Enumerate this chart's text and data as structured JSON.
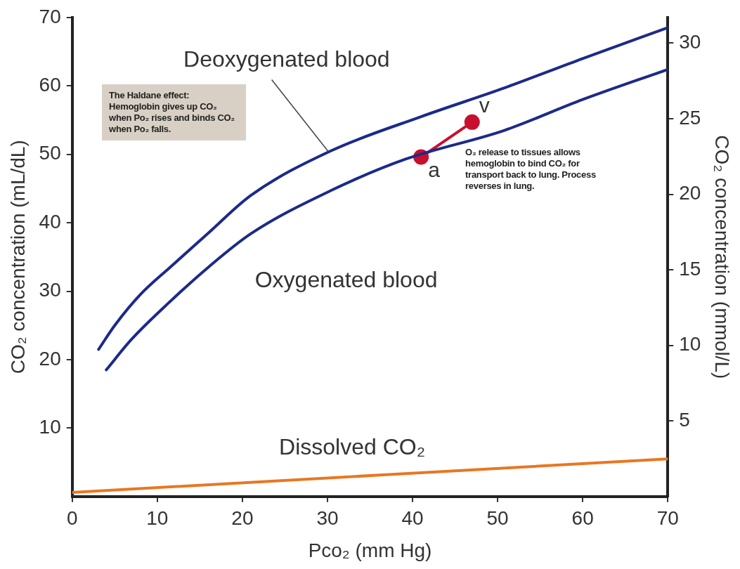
{
  "chart_data": {
    "type": "line",
    "xlabel": "Pco₂ (mm Hg)",
    "ylabel": "CO₂ concentration (mL/dL)",
    "y2label": "CO₂ concentration (mmol/L)",
    "xlim": [
      0,
      70
    ],
    "xticks": [
      0,
      10,
      20,
      30,
      40,
      50,
      60,
      70
    ],
    "ylim": [
      0,
      70
    ],
    "yticks": [
      10,
      20,
      30,
      40,
      50,
      60,
      70
    ],
    "y2lim": [
      0,
      31.7
    ],
    "y2ticks": [
      5,
      10,
      15,
      20,
      25,
      30
    ],
    "grid": false,
    "legend": false,
    "marker": "none",
    "line_style": "solid",
    "series": [
      {
        "name": "Deoxygenated blood",
        "color": "#1c2a8a",
        "x": [
          3.1,
          5,
          8,
          11.6,
          16,
          21,
          30.4,
          41,
          50.8,
          60,
          70
        ],
        "values": [
          21.5,
          25,
          29.5,
          33.6,
          38.5,
          44,
          50.5,
          55.5,
          59.7,
          64,
          68.5
        ]
      },
      {
        "name": "Oxygenated blood",
        "color": "#1c2a8a",
        "x": [
          4,
          7,
          11.6,
          16,
          21,
          30.4,
          39.2,
          50.8,
          60,
          70
        ],
        "values": [
          18.5,
          23,
          28.6,
          33.5,
          38.4,
          44.7,
          49.3,
          53.5,
          58,
          62.4
        ]
      },
      {
        "name": "Dissolved CO₂",
        "color": "#e87722",
        "x": [
          0,
          70
        ],
        "values": [
          0.6,
          5.5
        ]
      },
      {
        "color": "#c8102e",
        "marker": "circle",
        "x": [
          41,
          47
        ],
        "values": [
          49.6,
          54.7
        ],
        "value_labels": [
          "a",
          "v"
        ]
      }
    ],
    "annotations": [
      "The Haldane effect: Hemoglobin gives up CO₂ when Po₂ rises and binds CO₂ when Po₂ falls.",
      "O₂ release to tissues allows hemoglobin to bind CO₂ for transport back to lung. Process reverses in lung."
    ]
  }
}
